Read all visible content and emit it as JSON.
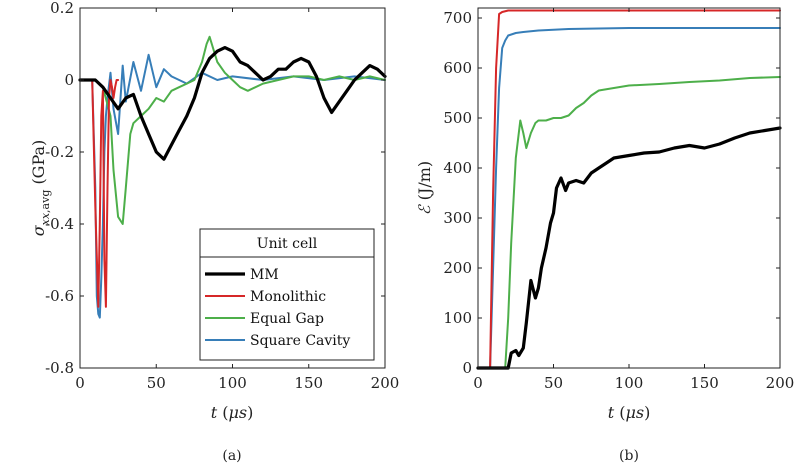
{
  "chart_data": [
    {
      "type": "line",
      "caption": "(a)",
      "xlabel": "t (μs)",
      "ylabel": "σ_xx,avg (GPa)",
      "xlim": [
        0,
        200
      ],
      "ylim": [
        -0.8,
        0.2
      ],
      "xticks": [
        0,
        50,
        100,
        150,
        200
      ],
      "yticks": [
        -0.8,
        -0.6,
        -0.4,
        -0.2,
        0,
        0.2
      ],
      "ytick_labels": [
        "-0.8",
        "-0.6",
        "-0.4",
        "-0.2",
        "0",
        "0.2"
      ],
      "legend": {
        "title": "Unit cell",
        "placement": "lower-right"
      },
      "series": [
        {
          "name": "MM",
          "color": "#000000",
          "x": [
            0,
            10,
            15,
            20,
            25,
            30,
            35,
            40,
            45,
            50,
            55,
            60,
            65,
            70,
            75,
            80,
            85,
            90,
            95,
            100,
            105,
            110,
            115,
            120,
            125,
            130,
            135,
            140,
            145,
            150,
            155,
            160,
            165,
            170,
            175,
            180,
            185,
            190,
            195,
            200
          ],
          "y": [
            0,
            0,
            -0.02,
            -0.05,
            -0.08,
            -0.05,
            -0.04,
            -0.1,
            -0.15,
            -0.2,
            -0.22,
            -0.18,
            -0.14,
            -0.1,
            -0.05,
            0.02,
            0.06,
            0.08,
            0.09,
            0.08,
            0.05,
            0.04,
            0.02,
            0.0,
            0.01,
            0.03,
            0.03,
            0.05,
            0.06,
            0.05,
            0.01,
            -0.05,
            -0.09,
            -0.06,
            -0.03,
            0.0,
            0.02,
            0.04,
            0.03,
            0.01
          ]
        },
        {
          "name": "Monolithic",
          "color": "#d62728",
          "x": [
            0,
            8,
            10,
            12,
            13,
            14,
            15,
            16,
            17,
            18,
            19,
            20,
            21,
            22,
            23,
            24,
            25
          ],
          "y": [
            0,
            0,
            -0.35,
            -0.63,
            -0.4,
            -0.1,
            -0.03,
            -0.5,
            -0.63,
            -0.3,
            -0.05,
            0.0,
            -0.02,
            -0.05,
            -0.02,
            0,
            0
          ]
        },
        {
          "name": "Equal Gap",
          "color": "#4daf4a",
          "x": [
            0,
            10,
            15,
            20,
            22,
            25,
            28,
            30,
            33,
            35,
            40,
            45,
            50,
            55,
            60,
            65,
            70,
            75,
            80,
            83,
            85,
            90,
            95,
            100,
            105,
            110,
            120,
            130,
            140,
            150,
            160,
            170,
            180,
            190,
            200
          ],
          "y": [
            0,
            0,
            -0.02,
            -0.1,
            -0.25,
            -0.38,
            -0.4,
            -0.3,
            -0.15,
            -0.12,
            -0.1,
            -0.08,
            -0.05,
            -0.06,
            -0.03,
            -0.02,
            -0.01,
            0.0,
            0.05,
            0.1,
            0.12,
            0.05,
            0.02,
            0.0,
            -0.02,
            -0.03,
            -0.01,
            0.0,
            0.01,
            0.01,
            0.0,
            0.01,
            0.0,
            0.01,
            0.0
          ]
        },
        {
          "name": "Square Cavity",
          "color": "#377eb8",
          "x": [
            0,
            8,
            10,
            11,
            12,
            13,
            14,
            15,
            16,
            17,
            18,
            20,
            22,
            25,
            28,
            30,
            35,
            40,
            45,
            50,
            55,
            60,
            70,
            80,
            90,
            100,
            120,
            140,
            160,
            180,
            200
          ],
          "y": [
            0,
            0,
            -0.3,
            -0.6,
            -0.65,
            -0.66,
            -0.55,
            -0.4,
            -0.2,
            -0.1,
            -0.05,
            0.02,
            -0.08,
            -0.15,
            0.04,
            -0.06,
            0.05,
            -0.03,
            0.07,
            -0.02,
            0.03,
            0.01,
            -0.01,
            0.02,
            0.0,
            0.01,
            0.0,
            0.01,
            0.0,
            0.01,
            0.0
          ]
        }
      ]
    },
    {
      "type": "line",
      "caption": "(b)",
      "xlabel": "t (μs)",
      "ylabel": "ℰ (J/m)",
      "xlim": [
        0,
        200
      ],
      "ylim": [
        0,
        720
      ],
      "xticks": [
        0,
        50,
        100,
        150,
        200
      ],
      "yticks": [
        0,
        100,
        200,
        300,
        400,
        500,
        600,
        700
      ],
      "series": [
        {
          "name": "MM",
          "color": "#000000",
          "x": [
            0,
            20,
            22,
            25,
            27,
            30,
            32,
            35,
            38,
            40,
            42,
            45,
            48,
            50,
            52,
            55,
            58,
            60,
            65,
            70,
            75,
            80,
            85,
            90,
            100,
            110,
            120,
            130,
            140,
            150,
            160,
            170,
            180,
            190,
            200
          ],
          "y": [
            0,
            0,
            30,
            35,
            25,
            40,
            90,
            175,
            140,
            160,
            200,
            240,
            290,
            310,
            360,
            380,
            355,
            370,
            375,
            370,
            390,
            400,
            410,
            420,
            425,
            430,
            432,
            440,
            445,
            440,
            448,
            460,
            470,
            475,
            480
          ]
        },
        {
          "name": "Monolithic",
          "color": "#d62728",
          "x": [
            0,
            8,
            10,
            12,
            14,
            16,
            20,
            30,
            50,
            100,
            150,
            200
          ],
          "y": [
            0,
            0,
            350,
            600,
            708,
            712,
            715,
            715,
            715,
            715,
            715,
            715
          ]
        },
        {
          "name": "Equal Gap",
          "color": "#4daf4a",
          "x": [
            0,
            18,
            20,
            22,
            25,
            28,
            30,
            32,
            35,
            38,
            40,
            45,
            50,
            55,
            60,
            65,
            70,
            75,
            80,
            90,
            100,
            120,
            140,
            160,
            180,
            200
          ],
          "y": [
            0,
            0,
            100,
            250,
            420,
            495,
            470,
            440,
            470,
            490,
            495,
            495,
            500,
            500,
            505,
            520,
            530,
            545,
            555,
            560,
            565,
            568,
            572,
            575,
            580,
            582
          ]
        },
        {
          "name": "Square Cavity",
          "color": "#377eb8",
          "x": [
            0,
            8,
            10,
            12,
            14,
            16,
            18,
            20,
            25,
            30,
            40,
            60,
            100,
            150,
            200
          ],
          "y": [
            0,
            0,
            200,
            400,
            560,
            640,
            655,
            665,
            670,
            672,
            675,
            678,
            680,
            680,
            680
          ]
        }
      ]
    }
  ]
}
